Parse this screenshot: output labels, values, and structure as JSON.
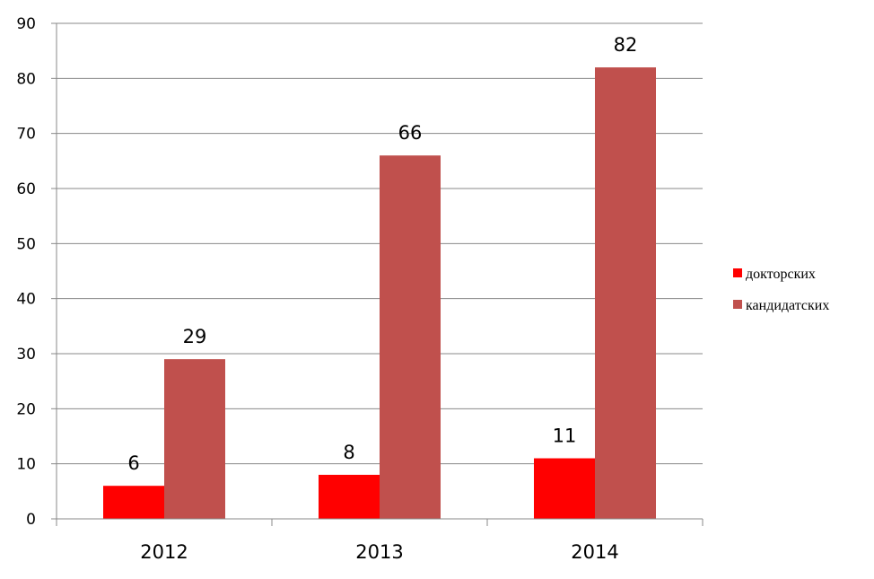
{
  "chart_data": {
    "type": "bar",
    "title": "",
    "xlabel": "",
    "ylabel": "",
    "categories": [
      "2012",
      "2013",
      "2014"
    ],
    "series": [
      {
        "name": "докторских",
        "values": [
          6,
          8,
          11
        ],
        "color": "#ff0000"
      },
      {
        "name": "кандидатских",
        "values": [
          29,
          66,
          82
        ],
        "color": "#c0504d"
      }
    ],
    "ylim": [
      0,
      90
    ],
    "yticks": [
      0,
      10,
      20,
      30,
      40,
      50,
      60,
      70,
      80,
      90
    ],
    "grid": "horizontal",
    "data_labels": true,
    "legend_position": "right"
  }
}
